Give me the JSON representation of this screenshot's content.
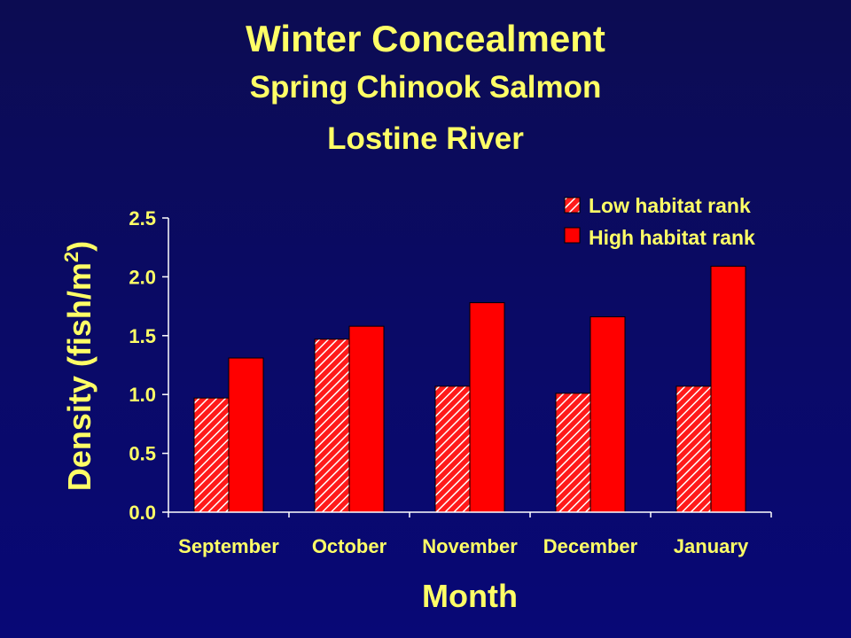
{
  "chart_data": {
    "type": "bar",
    "title": "Winter Concealment",
    "subtitle_lines": [
      "Spring Chinook Salmon",
      "Lostine River"
    ],
    "xlabel": "Month",
    "ylabel": "Density (fish/m",
    "ylabel_superscript": "2",
    "ylabel_suffix": ")",
    "categories": [
      "September",
      "October",
      "November",
      "December",
      "January"
    ],
    "series": [
      {
        "name": "Low habitat rank",
        "values": [
          0.97,
          1.47,
          1.07,
          1.01,
          1.07
        ],
        "color": "#ff1a1a",
        "pattern": "hatched"
      },
      {
        "name": "High habitat rank",
        "values": [
          1.31,
          1.58,
          1.78,
          1.66,
          2.09
        ],
        "color": "#ff0000",
        "pattern": "solid"
      }
    ],
    "ylim": [
      0,
      2.5
    ],
    "yticks": [
      "0.0",
      "0.5",
      "1.0",
      "1.5",
      "2.0",
      "2.5"
    ],
    "grid": false,
    "legend_position": "top-right"
  },
  "colors": {
    "background": "#0a0a66",
    "text": "#ffff66",
    "axis": "#ffffff",
    "bar_high": "#ff0000",
    "bar_low": "#ff1a1a",
    "hatch": "#ffffff"
  }
}
